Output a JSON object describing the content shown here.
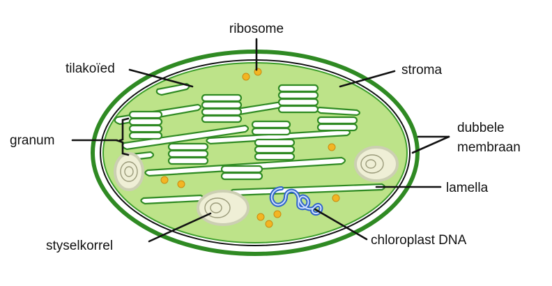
{
  "labels": {
    "ribosome": "ribosome",
    "thylakoid": "tilakoïed",
    "stroma": "stroma",
    "granum": "granum",
    "membrane_line1": "dubbele",
    "membrane_line2": "membraan",
    "lamella": "lamella",
    "starch": "styselkorrel",
    "dna": "chloroplast DNA"
  },
  "colors": {
    "outer_membrane": "#2f8a23",
    "inner_membrane": "#3c9e2a",
    "stroma": "#bde389",
    "thylakoid_fill": "#ffffff",
    "thylakoid_stroke": "#2f8a23",
    "ribosome": "#f3b523",
    "starch": "#efefd6",
    "dna": "#2f63c9",
    "leader": "#111111"
  }
}
